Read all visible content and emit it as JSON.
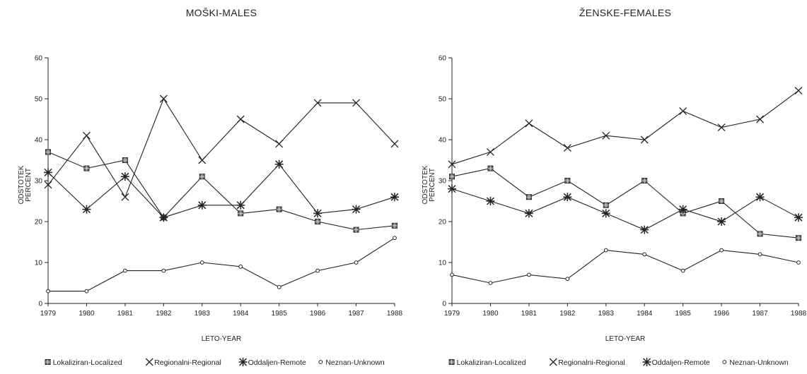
{
  "chart_data": [
    {
      "type": "line",
      "title": "MOŠKI-MALES",
      "xlabel": "LETO-YEAR",
      "ylabel": [
        "ODSTOTEK",
        "PERCENT"
      ],
      "ylim": [
        0,
        60
      ],
      "yticks": [
        "0",
        "10",
        "20",
        "30",
        "40",
        "50",
        "60"
      ],
      "categories": [
        "1979",
        "1980",
        "1981",
        "1982",
        "1983",
        "1984",
        "1985",
        "1986",
        "1987",
        "1988"
      ],
      "series": [
        {
          "name": "Lokaliziran-Localized",
          "marker": "square",
          "values": [
            37,
            33,
            35,
            21,
            31,
            22,
            23,
            20,
            18,
            19
          ]
        },
        {
          "name": "Regionalni-Regional",
          "marker": "x",
          "values": [
            29,
            41,
            26,
            50,
            35,
            45,
            39,
            49,
            49,
            39
          ]
        },
        {
          "name": "Oddaljen-Remote",
          "marker": "star",
          "values": [
            32,
            23,
            31,
            21,
            24,
            24,
            34,
            22,
            23,
            26
          ]
        },
        {
          "name": "Neznan-Unknown",
          "marker": "dot",
          "values": [
            3,
            3,
            8,
            8,
            10,
            9,
            4,
            8,
            10,
            16
          ]
        }
      ],
      "grid": false,
      "legend": "bottom"
    },
    {
      "type": "line",
      "title": "ŽENSKE-FEMALES",
      "xlabel": "LETO-YEAR",
      "ylabel": [
        "ODSTOTEK",
        "PERCENT"
      ],
      "ylim": [
        0,
        60
      ],
      "yticks": [
        "0",
        "10",
        "20",
        "30",
        "40",
        "50",
        "60"
      ],
      "categories": [
        "1979",
        "1980",
        "1981",
        "1982",
        "1983",
        "1984",
        "1985",
        "1986",
        "1987",
        "1988"
      ],
      "series": [
        {
          "name": "Lokaliziran-Localized",
          "marker": "square",
          "values": [
            31,
            33,
            26,
            30,
            24,
            30,
            22,
            25,
            17,
            16
          ]
        },
        {
          "name": "Regionalni-Regional",
          "marker": "x",
          "values": [
            34,
            37,
            44,
            38,
            41,
            40,
            47,
            43,
            45,
            52
          ]
        },
        {
          "name": "Oddaljen-Remote",
          "marker": "star",
          "values": [
            28,
            25,
            22,
            26,
            22,
            18,
            23,
            20,
            26,
            21
          ]
        },
        {
          "name": "Neznan-Unknown",
          "marker": "dot",
          "values": [
            7,
            5,
            7,
            6,
            13,
            12,
            8,
            13,
            12,
            10
          ]
        }
      ],
      "grid": false,
      "legend": "bottom"
    }
  ]
}
